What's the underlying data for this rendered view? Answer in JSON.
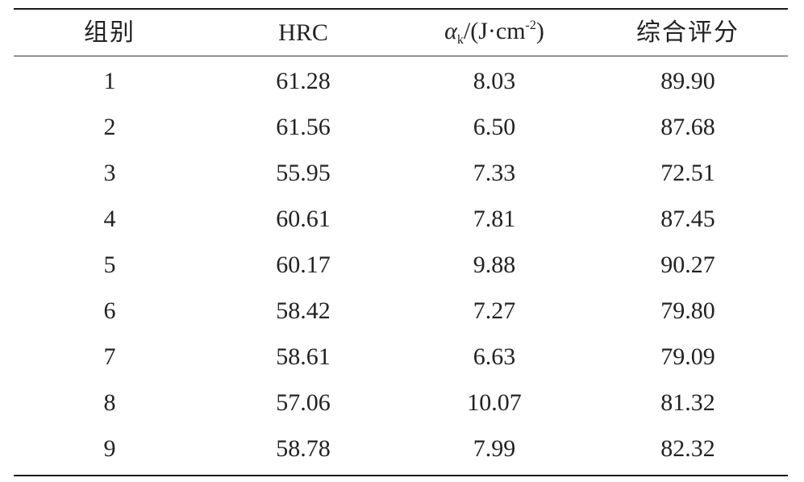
{
  "table": {
    "headers": {
      "group": "组别",
      "hrc": "HRC",
      "impact_symbol": "α",
      "impact_subscript": "k",
      "impact_unit_open": "/(J·cm",
      "impact_unit_exp": "-2",
      "impact_unit_close": ")",
      "score": "综合评分"
    },
    "rows": [
      {
        "group": "1",
        "hrc": "61.28",
        "ak": "8.03",
        "score": "89.90"
      },
      {
        "group": "2",
        "hrc": "61.56",
        "ak": "6.50",
        "score": "87.68"
      },
      {
        "group": "3",
        "hrc": "55.95",
        "ak": "7.33",
        "score": "72.51"
      },
      {
        "group": "4",
        "hrc": "60.61",
        "ak": "7.81",
        "score": "87.45"
      },
      {
        "group": "5",
        "hrc": "60.17",
        "ak": "9.88",
        "score": "90.27"
      },
      {
        "group": "6",
        "hrc": "58.42",
        "ak": "7.27",
        "score": "79.80"
      },
      {
        "group": "7",
        "hrc": "58.61",
        "ak": "6.63",
        "score": "79.09"
      },
      {
        "group": "8",
        "hrc": "57.06",
        "ak": "10.07",
        "score": "81.32"
      },
      {
        "group": "9",
        "hrc": "58.78",
        "ak": "7.99",
        "score": "82.32"
      }
    ]
  }
}
